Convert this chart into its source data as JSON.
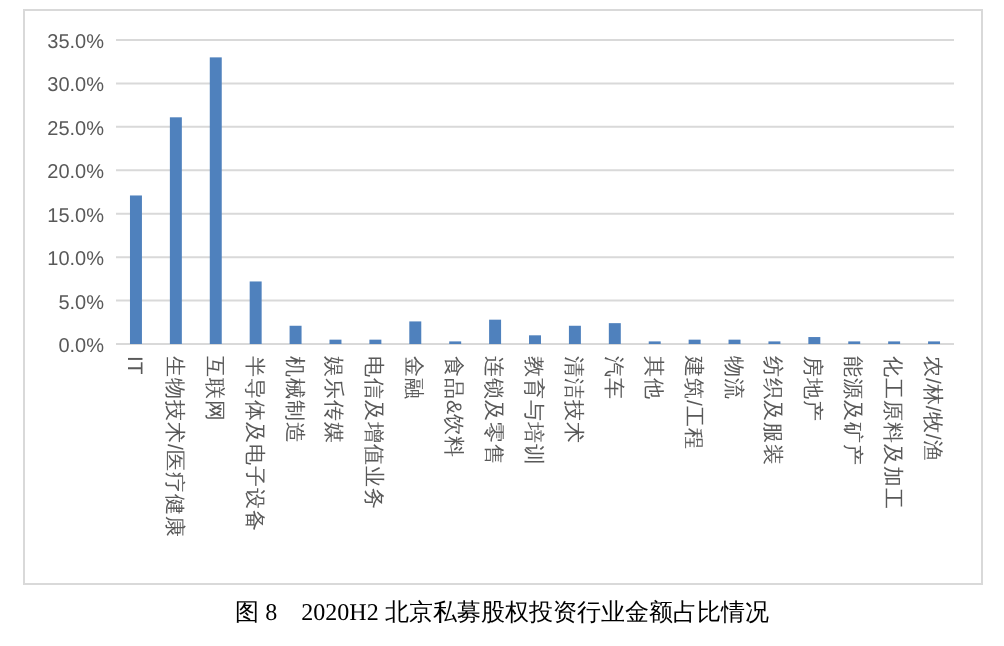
{
  "chart_data": {
    "type": "bar",
    "title": "图 8　2020H2 北京私募股权投资行业金额占比情况",
    "categories": [
      "IT",
      "生物技术/医疗健康",
      "互联网",
      "半导体及电子设备",
      "机械制造",
      "娱乐传媒",
      "电信及增值业务",
      "金融",
      "食品&饮料",
      "连锁及零售",
      "教育与培训",
      "清洁技术",
      "汽车",
      "其他",
      "建筑/工程",
      "物流",
      "纺织及服装",
      "房地产",
      "能源及矿产",
      "化工原料及加工",
      "农/林/牧/渔"
    ],
    "values": [
      17.1,
      26.1,
      33.0,
      7.2,
      2.1,
      0.5,
      0.5,
      2.6,
      0.3,
      2.8,
      1.0,
      2.1,
      2.4,
      0.3,
      0.5,
      0.5,
      0.3,
      0.8,
      0.3,
      0.3,
      0.3
    ],
    "color": "#4f81bd",
    "ylim": [
      0,
      35
    ],
    "yticks": [
      {
        "value": 0,
        "label": "0.0%"
      },
      {
        "value": 5,
        "label": "5.0%"
      },
      {
        "value": 10,
        "label": "10.0%"
      },
      {
        "value": 15,
        "label": "15.0%"
      },
      {
        "value": 20,
        "label": "20.0%"
      },
      {
        "value": 25,
        "label": "25.0%"
      },
      {
        "value": 30,
        "label": "30.0%"
      },
      {
        "value": 35,
        "label": "35.0%"
      }
    ],
    "grid": "y"
  }
}
